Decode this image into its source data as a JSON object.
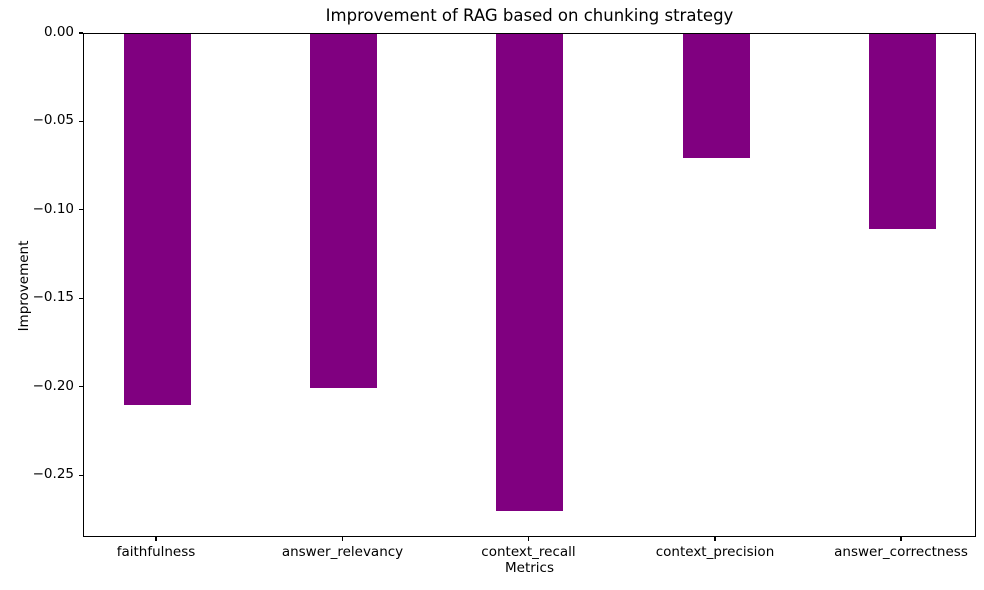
{
  "chart_data": {
    "type": "bar",
    "title": "Improvement of RAG based on chunking strategy",
    "xlabel": "Metrics",
    "ylabel": "Improvement",
    "categories": [
      "faithfulness",
      "answer_relevancy",
      "context_recall",
      "context_precision",
      "answer_correctness"
    ],
    "values": [
      -0.21,
      -0.2,
      -0.27,
      -0.07,
      -0.11
    ],
    "bar_color": "#800080",
    "ylim": [
      -0.285,
      0.0
    ],
    "yticks": [
      0.0,
      -0.05,
      -0.1,
      -0.15,
      -0.2,
      -0.25
    ],
    "ytick_labels": [
      "0.00",
      "−0.05",
      "−0.10",
      "−0.15",
      "−0.20",
      "−0.25"
    ],
    "grid": false,
    "legend": "none",
    "background_color": "#ffffff",
    "axis_color": "#000000"
  }
}
